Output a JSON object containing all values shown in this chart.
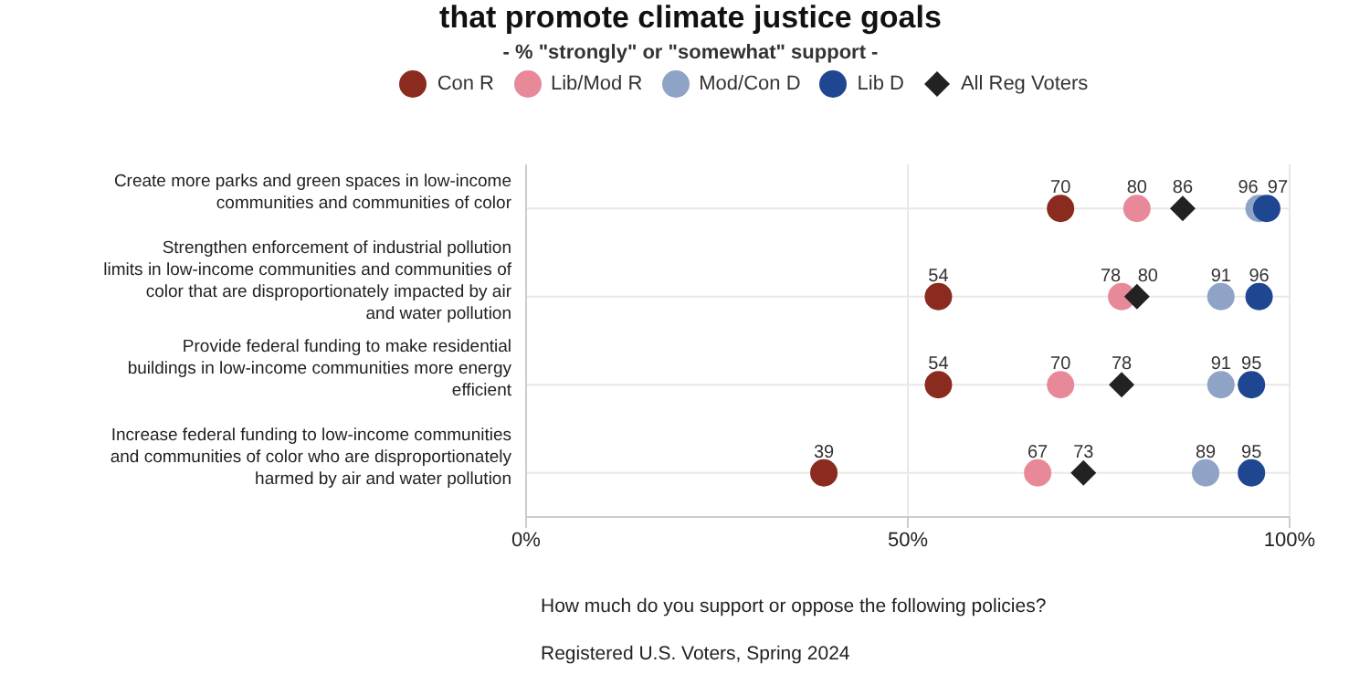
{
  "chart_data": {
    "type": "scatter",
    "orientation": "horizontal",
    "title": "that promote climate justice goals",
    "subtitle": "- % \"strongly\" or \"somewhat\" support -",
    "categories": [
      "Create more parks and green spaces in low-income communities and communities of color",
      "Strengthen enforcement of industrial pollution limits in low-income communities and communities of color that are disproportionately impacted by air and water pollution",
      "Provide federal funding to make residential buildings in low-income communities more energy efficient",
      "Increase federal funding to low-income communities and communities of color who are disproportionately harmed by air and water pollution"
    ],
    "series": [
      {
        "name": "Con R",
        "color": "#8b2a1e",
        "marker": "circle",
        "values": [
          70,
          54,
          54,
          39
        ]
      },
      {
        "name": "Lib/Mod R",
        "color": "#e8899a",
        "marker": "circle",
        "values": [
          80,
          78,
          70,
          67
        ]
      },
      {
        "name": "Mod/Con D",
        "color": "#8fa3c6",
        "marker": "circle",
        "values": [
          96,
          91,
          91,
          89
        ]
      },
      {
        "name": "Lib D",
        "color": "#1f4690",
        "marker": "circle",
        "values": [
          97,
          96,
          95,
          95
        ]
      },
      {
        "name": "All Reg Voters",
        "color": "#222222",
        "marker": "diamond",
        "values": [
          86,
          80,
          78,
          73
        ]
      }
    ],
    "xlim": [
      0,
      100
    ],
    "xticks": [
      {
        "value": 0,
        "label": "0%"
      },
      {
        "value": 50,
        "label": "50%"
      },
      {
        "value": 100,
        "label": "100%"
      }
    ],
    "data_labels": true,
    "grid": true,
    "legend": "top",
    "annotations": [
      "How much do you support or oppose the following policies?",
      "Registered U.S. Voters, Spring 2024"
    ]
  }
}
